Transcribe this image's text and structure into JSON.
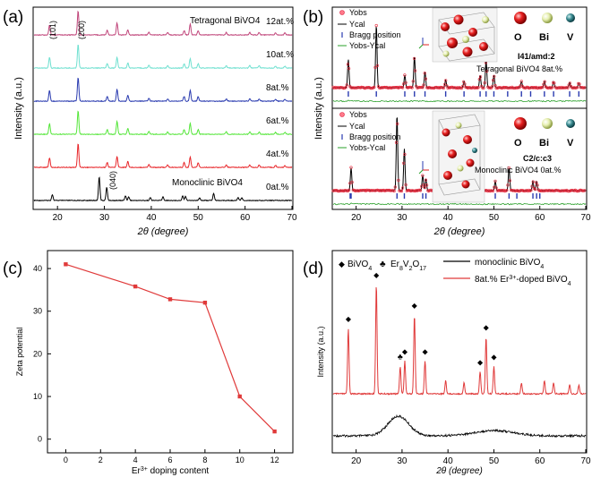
{
  "figure": {
    "panels": [
      {
        "label": "(a)"
      },
      {
        "label": "(b)"
      },
      {
        "label": "(c)"
      },
      {
        "label": "(d)"
      }
    ]
  },
  "chart_data": [
    {
      "panel": "(a)",
      "type": "line",
      "xlabel": "2θ (degree)",
      "ylabel": "Intensity (a.u.)",
      "xlim": [
        15,
        70
      ],
      "xticks": [
        20,
        30,
        40,
        50,
        60,
        70
      ],
      "annotations": [
        "Tetragonal BiVO4",
        "Monoclinic BiVO4",
        "(101)",
        "(200)",
        "(040)"
      ],
      "series": [
        {
          "name": "0at.%",
          "color": "#000000",
          "phase": "monoclinic",
          "peaks": [
            [
              18.9,
              0.25
            ],
            [
              28.9,
              1.0
            ],
            [
              30.5,
              0.55
            ],
            [
              34.5,
              0.2
            ],
            [
              35.2,
              0.15
            ],
            [
              39.8,
              0.12
            ],
            [
              42.5,
              0.15
            ],
            [
              46.7,
              0.2
            ],
            [
              47.3,
              0.18
            ],
            [
              50.3,
              0.12
            ],
            [
              53.3,
              0.3
            ],
            [
              58.5,
              0.12
            ],
            [
              59.3,
              0.12
            ]
          ]
        },
        {
          "name": "4at.%",
          "color": "#e8262a",
          "phase": "tetragonal",
          "peaks": [
            [
              18.3,
              0.4
            ],
            [
              24.4,
              1.0
            ],
            [
              30.6,
              0.2
            ],
            [
              32.7,
              0.45
            ],
            [
              35.0,
              0.25
            ],
            [
              39.5,
              0.12
            ],
            [
              43.5,
              0.1
            ],
            [
              47.0,
              0.2
            ],
            [
              48.3,
              0.45
            ],
            [
              50.0,
              0.2
            ],
            [
              56.0,
              0.1
            ],
            [
              61.0,
              0.1
            ],
            [
              63.0,
              0.1
            ],
            [
              66.5,
              0.08
            ],
            [
              68.5,
              0.08
            ]
          ]
        },
        {
          "name": "6at.%",
          "color": "#55e63a",
          "phase": "tetragonal",
          "peaks": [
            [
              18.3,
              0.45
            ],
            [
              24.4,
              1.0
            ],
            [
              30.6,
              0.2
            ],
            [
              32.7,
              0.55
            ],
            [
              35.0,
              0.25
            ],
            [
              39.5,
              0.12
            ],
            [
              43.5,
              0.1
            ],
            [
              47.0,
              0.2
            ],
            [
              48.3,
              0.45
            ],
            [
              50.0,
              0.2
            ],
            [
              56.0,
              0.1
            ],
            [
              61.0,
              0.1
            ],
            [
              63.0,
              0.1
            ],
            [
              66.5,
              0.08
            ],
            [
              68.5,
              0.08
            ]
          ]
        },
        {
          "name": "8at.%",
          "color": "#2a3bb0",
          "phase": "tetragonal",
          "peaks": [
            [
              18.3,
              0.45
            ],
            [
              24.4,
              1.0
            ],
            [
              30.6,
              0.2
            ],
            [
              32.7,
              0.5
            ],
            [
              35.0,
              0.25
            ],
            [
              39.5,
              0.12
            ],
            [
              43.5,
              0.1
            ],
            [
              47.0,
              0.2
            ],
            [
              48.3,
              0.45
            ],
            [
              50.0,
              0.2
            ],
            [
              56.0,
              0.1
            ],
            [
              61.0,
              0.1
            ],
            [
              63.0,
              0.1
            ],
            [
              66.5,
              0.08
            ],
            [
              68.5,
              0.08
            ]
          ]
        },
        {
          "name": "10at.%",
          "color": "#6fe0d0",
          "phase": "tetragonal",
          "peaks": [
            [
              18.3,
              0.45
            ],
            [
              24.4,
              1.0
            ],
            [
              30.6,
              0.2
            ],
            [
              32.7,
              0.45
            ],
            [
              35.0,
              0.22
            ],
            [
              39.5,
              0.12
            ],
            [
              43.5,
              0.1
            ],
            [
              47.0,
              0.18
            ],
            [
              48.3,
              0.4
            ],
            [
              50.0,
              0.18
            ],
            [
              56.0,
              0.1
            ],
            [
              61.0,
              0.1
            ],
            [
              63.0,
              0.1
            ],
            [
              66.5,
              0.08
            ],
            [
              68.5,
              0.08
            ]
          ]
        },
        {
          "name": "12at.%",
          "color": "#c0457a",
          "phase": "tetragonal",
          "peaks": [
            [
              18.3,
              0.4
            ],
            [
              24.4,
              1.0
            ],
            [
              30.6,
              0.2
            ],
            [
              32.7,
              0.5
            ],
            [
              35.0,
              0.22
            ],
            [
              39.5,
              0.12
            ],
            [
              43.5,
              0.1
            ],
            [
              47.0,
              0.18
            ],
            [
              48.3,
              0.45
            ],
            [
              50.0,
              0.18
            ],
            [
              56.0,
              0.1
            ],
            [
              61.0,
              0.1
            ],
            [
              63.0,
              0.1
            ],
            [
              66.5,
              0.08
            ],
            [
              68.5,
              0.08
            ]
          ]
        }
      ]
    },
    {
      "panel": "(b)",
      "type": "line",
      "xlabel": "2θ (degree)",
      "ylabel": "Intensity (a.u.)",
      "xlim": [
        15,
        70
      ],
      "xticks": [
        20,
        30,
        40,
        50,
        60,
        70
      ],
      "legend_symbols": [
        "Yobs",
        "Ycal",
        "Bragg position",
        "Yobs-Ycal"
      ],
      "atom_legend": [
        "O",
        "Bi",
        "V"
      ],
      "subplots": [
        {
          "name": "Tetragonal BiVO4 8at.%",
          "space_group": "I41/amd:2",
          "title": "Tetragonal BiVO4 8at.%",
          "peaks": [
            [
              18.3,
              0.45
            ],
            [
              24.4,
              1.0
            ],
            [
              30.6,
              0.2
            ],
            [
              32.7,
              0.5
            ],
            [
              35.0,
              0.25
            ],
            [
              39.5,
              0.12
            ],
            [
              43.5,
              0.1
            ],
            [
              47.0,
              0.2
            ],
            [
              48.3,
              0.45
            ],
            [
              50.0,
              0.2
            ],
            [
              56.0,
              0.1
            ],
            [
              61.0,
              0.1
            ],
            [
              63.0,
              0.1
            ],
            [
              66.5,
              0.08
            ],
            [
              68.5,
              0.08
            ]
          ],
          "bragg": [
            18.3,
            24.4,
            30.6,
            32.7,
            35.0,
            39.5,
            43.5,
            47.0,
            48.3,
            50.0,
            53.0,
            56.0,
            58.0,
            61.0,
            63.0,
            66.5,
            68.5
          ]
        },
        {
          "name": "Monoclinic BiVO4 0at.%",
          "space_group": "C2/c:c3",
          "title": "Monoclinic BiVO4 0at.%",
          "peaks": [
            [
              18.9,
              0.3
            ],
            [
              28.9,
              1.0
            ],
            [
              30.5,
              0.55
            ],
            [
              34.5,
              0.2
            ],
            [
              35.2,
              0.15
            ],
            [
              39.8,
              0.12
            ],
            [
              42.5,
              0.15
            ],
            [
              46.7,
              0.2
            ],
            [
              47.3,
              0.18
            ],
            [
              50.3,
              0.12
            ],
            [
              53.3,
              0.3
            ],
            [
              58.5,
              0.12
            ],
            [
              59.3,
              0.12
            ]
          ],
          "bragg": [
            18.7,
            18.9,
            28.9,
            30.5,
            34.5,
            35.2,
            39.8,
            42.5,
            45.9,
            46.7,
            47.3,
            50.3,
            53.3,
            55.0,
            58.5,
            59.3,
            60.0
          ]
        }
      ]
    },
    {
      "panel": "(c)",
      "type": "line",
      "xlabel": "Er3+ doping content",
      "ylabel": "Zeta potential",
      "xlim": [
        -1,
        13
      ],
      "ylim": [
        -3,
        44
      ],
      "xticks": [
        0,
        2,
        4,
        6,
        8,
        10,
        12
      ],
      "yticks": [
        0,
        10,
        20,
        30,
        40
      ],
      "series": [
        {
          "name": "Zeta potential",
          "color": "#e03a3a",
          "x": [
            0,
            4,
            6,
            8,
            10,
            12
          ],
          "y": [
            41.0,
            35.8,
            32.8,
            32.0,
            10.0,
            1.8
          ]
        }
      ]
    },
    {
      "panel": "(d)",
      "type": "line",
      "xlabel": "2θ (degree)",
      "ylabel": "Intensity (a.u.)",
      "xlim": [
        15,
        70
      ],
      "xticks": [
        20,
        30,
        40,
        50,
        60,
        70
      ],
      "marker_legend": [
        "BiVO4",
        "Er8V2O17"
      ],
      "series": [
        {
          "name": "monoclinic BiVO4",
          "color": "#000000",
          "note": "amorphous hump near 29 deg"
        },
        {
          "name": "8at.% Er3+-doped BiVO4",
          "color": "#e03a3a",
          "peaks": [
            [
              18.3,
              0.6
            ],
            [
              24.4,
              1.0
            ],
            [
              29.6,
              0.25
            ],
            [
              30.6,
              0.3
            ],
            [
              32.7,
              0.72
            ],
            [
              35.0,
              0.3
            ],
            [
              39.5,
              0.12
            ],
            [
              43.5,
              0.1
            ],
            [
              47.0,
              0.2
            ],
            [
              48.3,
              0.52
            ],
            [
              50.0,
              0.25
            ],
            [
              56.0,
              0.1
            ],
            [
              61.0,
              0.12
            ],
            [
              63.0,
              0.1
            ],
            [
              66.5,
              0.08
            ],
            [
              68.5,
              0.08
            ]
          ]
        }
      ],
      "diamond_markers": [
        18.3,
        24.4,
        30.6,
        32.7,
        35.0,
        47.0,
        48.3,
        50.0
      ],
      "club_markers": [
        29.6
      ]
    }
  ]
}
